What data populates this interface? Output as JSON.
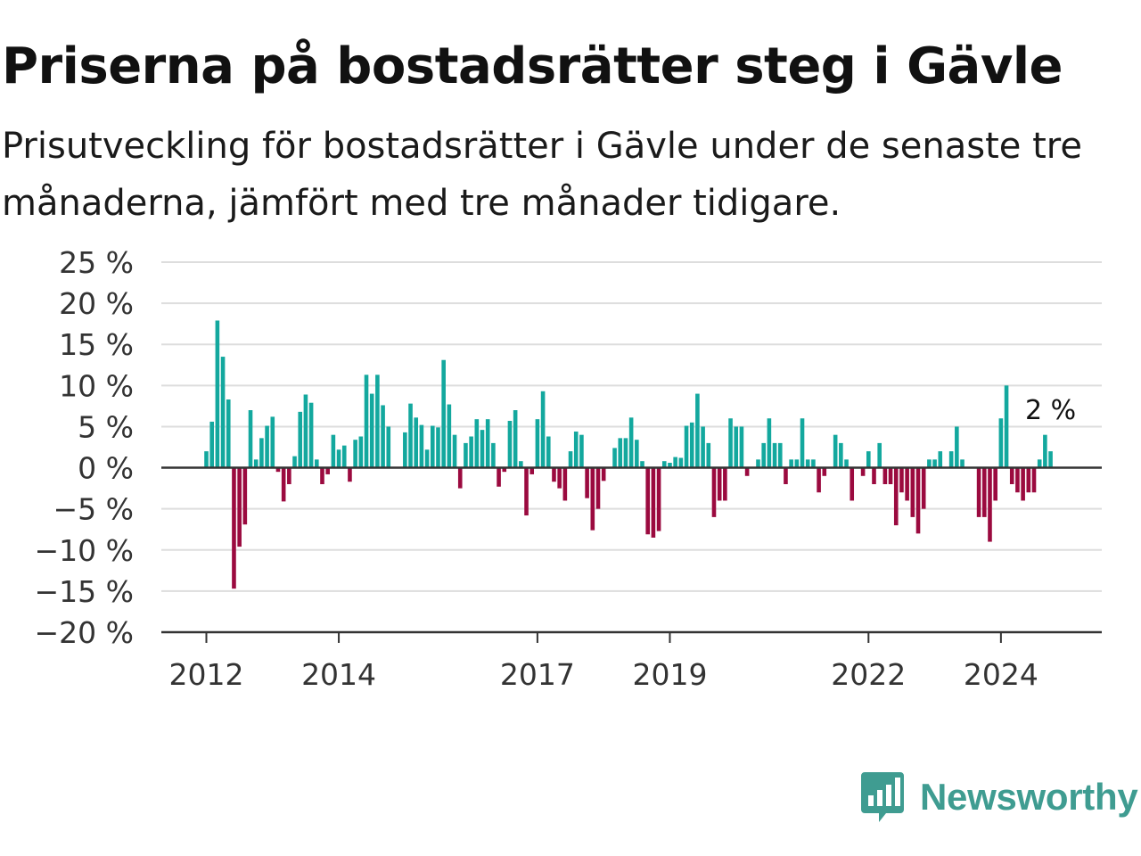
{
  "title": "Priserna på bostadsrätter steg i Gävle",
  "subtitle": "Prisutveckling för bostadsrätter i Gävle under de senaste tre månaderna, jämfört med tre månader tidigare.",
  "brand": {
    "name": "Newsworthy",
    "icon": "bar-chart-speech-icon",
    "color": "#3f9c91"
  },
  "colors": {
    "positive": "#13a89e",
    "negative": "#9b0a3f",
    "grid": "#dddddd",
    "baseline": "#333333"
  },
  "chart_data": {
    "type": "bar",
    "ylim": [
      -20,
      25
    ],
    "yticks": [
      25,
      20,
      15,
      10,
      5,
      0,
      -5,
      -10,
      -15,
      -20
    ],
    "ytick_labels": [
      "25 %",
      "20 %",
      "15 %",
      "10 %",
      "5 %",
      "0 %",
      "−5 %",
      "−10 %",
      "−15 %",
      "−20 %"
    ],
    "xticks": [
      2012,
      2014,
      2017,
      2019,
      2022,
      2024
    ],
    "xtick_labels": [
      "2012",
      "2014",
      "2017",
      "2019",
      "2022",
      "2024"
    ],
    "grid": true,
    "first_month": "2012-01",
    "end_label": "2 %",
    "values": [
      2,
      5.6,
      17.9,
      13.5,
      8.3,
      -14.7,
      -9.6,
      -6.9,
      7,
      1,
      3.6,
      5.1,
      6.2,
      -0.5,
      -4.1,
      -2,
      1.4,
      6.8,
      8.9,
      7.9,
      1,
      -2,
      -0.8,
      4,
      2.2,
      2.7,
      -1.7,
      3.4,
      3.8,
      11.3,
      9,
      11.3,
      7.6,
      5,
      0,
      0,
      4.3,
      7.8,
      6.1,
      5.2,
      2.2,
      5.1,
      4.9,
      13.1,
      7.7,
      4,
      -2.5,
      3,
      3.8,
      5.9,
      4.6,
      5.9,
      3,
      -2.3,
      -0.5,
      5.7,
      7,
      0.8,
      -5.8,
      -0.8,
      5.9,
      9.3,
      3.8,
      -1.7,
      -2.5,
      -4,
      2,
      4.4,
      4,
      -3.7,
      -7.6,
      -5,
      -1.6,
      0,
      2.4,
      3.6,
      3.6,
      6.1,
      3.4,
      0.8,
      -8.1,
      -8.5,
      -7.7,
      0.8,
      0.6,
      1.3,
      1.2,
      5.1,
      5.5,
      9,
      5,
      3,
      -6,
      -4,
      -4,
      6,
      5,
      5,
      -1,
      0,
      1,
      3,
      6,
      3,
      3,
      -2,
      1,
      1,
      6,
      1,
      1,
      -3,
      -1,
      0,
      4,
      3,
      1,
      -4,
      0,
      -1,
      2,
      -2,
      3,
      -2,
      -2,
      -7,
      -3,
      -4,
      -6,
      -8,
      -5,
      1,
      1,
      2,
      0,
      2,
      5,
      1,
      0,
      0,
      -6,
      -6,
      -9,
      -4,
      6,
      10,
      -2,
      -3,
      -4,
      -3,
      -3,
      1,
      4,
      2
    ]
  }
}
